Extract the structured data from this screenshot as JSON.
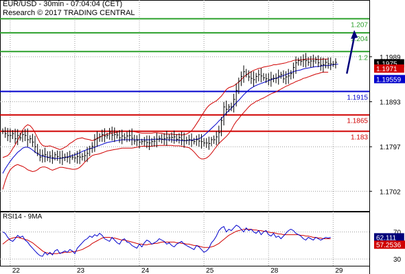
{
  "header": {
    "title": "EUR/USD - 30min - 07:04:04 (CET)",
    "subtitle": "Research © 2017 TRADING CENTRAL"
  },
  "chart_data": [
    {
      "type": "line",
      "name": "price",
      "ylim": [
        1.166,
        1.211
      ],
      "y_ticks": [
        {
          "value": 1.1989,
          "label": "1.1989"
        },
        {
          "value": 1.1893,
          "label": "1.1893"
        },
        {
          "value": 1.1797,
          "label": "1.1797"
        },
        {
          "value": 1.1702,
          "label": "1.1702"
        }
      ],
      "x_ticks": [
        {
          "x": 3,
          "label": "22"
        },
        {
          "x": 29,
          "label": "23"
        },
        {
          "x": 55,
          "label": "24"
        },
        {
          "x": 81,
          "label": "25"
        },
        {
          "x": 107,
          "label": "28"
        },
        {
          "x": 133,
          "label": "29"
        }
      ],
      "levels": [
        {
          "value": 1.207,
          "label": "1.207",
          "color": "#2ca02c"
        },
        {
          "value": 1.204,
          "label": "1.204",
          "color": "#2ca02c"
        },
        {
          "value": 1.2,
          "label": "1.2",
          "color": "#2ca02c"
        },
        {
          "value": 1.1915,
          "label": "1.1915",
          "color": "#0000cc"
        },
        {
          "value": 1.1865,
          "label": "1.1865",
          "color": "#d00000"
        },
        {
          "value": 1.183,
          "label": "1.183",
          "color": "#d00000"
        }
      ],
      "price_tags": [
        {
          "value": 1.1975,
          "label": "1.1975",
          "bg": "#000000",
          "fg": "#ffffff"
        },
        {
          "value": 1.1971,
          "label": "1.1971",
          "bg": "#d00000",
          "fg": "#ffffff"
        },
        {
          "value": 1.19559,
          "label": "1.19559",
          "bg": "#0000cc",
          "fg": "#ffffff"
        }
      ],
      "close": [
        1.183,
        1.1825,
        1.1821,
        1.1821,
        1.1825,
        1.1814,
        1.1821,
        1.1816,
        1.1823,
        1.1821,
        1.1812,
        1.1814,
        1.1807,
        1.1797,
        1.1783,
        1.1775,
        1.1779,
        1.178,
        1.1774,
        1.1777,
        1.1774,
        1.178,
        1.1776,
        1.1773,
        1.1774,
        1.1775,
        1.1774,
        1.1775,
        1.1775,
        1.1773,
        1.1776,
        1.1775,
        1.1776,
        1.1778,
        1.1783,
        1.1793,
        1.1798,
        1.1812,
        1.1815,
        1.1818,
        1.1823,
        1.182,
        1.1821,
        1.1828,
        1.1822,
        1.1823,
        1.1822,
        1.1816,
        1.182,
        1.1816,
        1.182,
        1.1821,
        1.1815,
        1.1809,
        1.1811,
        1.1807,
        1.1808,
        1.1809,
        1.1806,
        1.1805,
        1.1808,
        1.1809,
        1.1813,
        1.1815,
        1.1813,
        1.1814,
        1.1816,
        1.1816,
        1.1817,
        1.1818,
        1.1813,
        1.1817,
        1.1812,
        1.181,
        1.1811,
        1.1812,
        1.181,
        1.1808,
        1.1812,
        1.1809,
        1.1808,
        1.1805,
        1.1805,
        1.1804,
        1.1812,
        1.1812,
        1.1818,
        1.1827,
        1.1853,
        1.1882,
        1.1877,
        1.1882,
        1.1882,
        1.1898,
        1.1917,
        1.1937,
        1.1947,
        1.1957,
        1.1951,
        1.1946,
        1.1943,
        1.194,
        1.1947,
        1.1951,
        1.1948,
        1.1944,
        1.1942,
        1.194,
        1.1942,
        1.1943,
        1.1943,
        1.1948,
        1.1951,
        1.1942,
        1.1946,
        1.1948,
        1.1953,
        1.1966,
        1.1976,
        1.1981,
        1.1979,
        1.1982,
        1.1981,
        1.1977,
        1.198,
        1.198,
        1.1983,
        1.1976,
        1.1971,
        1.1972,
        1.1977,
        1.1974,
        1.1974,
        1.1973,
        1.1977
      ],
      "ma": [
        1.174,
        1.175,
        1.1758,
        1.1766,
        1.1773,
        1.1779,
        1.1785,
        1.1789,
        1.1794,
        1.1796,
        1.1796,
        1.1794,
        1.179,
        1.1786,
        1.1782,
        1.1779,
        1.1777,
        1.1776,
        1.1775,
        1.1774,
        1.1772,
        1.1772,
        1.1772,
        1.1772,
        1.1773,
        1.1774,
        1.1775,
        1.1777,
        1.1778,
        1.178,
        1.1782,
        1.1784,
        1.1787,
        1.1789,
        1.1791,
        1.1793,
        1.1794,
        1.1796,
        1.1798,
        1.18,
        1.1802,
        1.1804,
        1.1806,
        1.1807,
        1.1808,
        1.1809,
        1.181,
        1.1811,
        1.1812,
        1.1812,
        1.1812,
        1.1812,
        1.1812,
        1.1812,
        1.1812,
        1.1812,
        1.1812,
        1.1812,
        1.1812,
        1.1812,
        1.1812,
        1.1813,
        1.1813,
        1.1813,
        1.1813,
        1.1812,
        1.1812,
        1.1812,
        1.1812,
        1.1811,
        1.1811,
        1.1811,
        1.181,
        1.181,
        1.181,
        1.1811,
        1.1811,
        1.1812,
        1.1813,
        1.1814,
        1.1817,
        1.1821,
        1.1826,
        1.1831,
        1.1836,
        1.1841,
        1.1846,
        1.1852,
        1.1857,
        1.1863,
        1.1869,
        1.1874,
        1.1879,
        1.1885,
        1.1891,
        1.1896,
        1.1902,
        1.1908,
        1.1913,
        1.1918,
        1.1922,
        1.1925,
        1.1928,
        1.193,
        1.1932,
        1.1934,
        1.1936,
        1.1938,
        1.194,
        1.1942,
        1.1943,
        1.1945,
        1.1947,
        1.1949,
        1.1951,
        1.1953,
        1.1955,
        1.1957,
        1.1959,
        1.196,
        1.1961,
        1.1963,
        1.1964,
        1.1965,
        1.1966,
        1.1967,
        1.1968,
        1.1968,
        1.1969,
        1.197,
        1.197,
        1.197,
        1.1971,
        1.1972,
        1.1973,
        1.1973
      ],
      "band_width": [
        0.0034,
        0.0026,
        0.002,
        0.0018,
        0.002,
        0.0022,
        0.0026,
        0.0032,
        0.0039,
        0.0044,
        0.0048,
        0.0048,
        0.0046,
        0.0041,
        0.0034,
        0.0027,
        0.0023,
        0.0022,
        0.0023,
        0.0025,
        0.0025,
        0.0023,
        0.0021,
        0.0019,
        0.002,
        0.0022,
        0.0024,
        0.0027,
        0.0029,
        0.0031,
        0.0032,
        0.0031,
        0.0029,
        0.0025,
        0.0022,
        0.0019,
        0.0016,
        0.0016,
        0.0017,
        0.0018,
        0.0018,
        0.0018,
        0.0018,
        0.0018,
        0.0018,
        0.0018,
        0.0018,
        0.0018,
        0.0018,
        0.0018,
        0.0018,
        0.0018,
        0.0018,
        0.0017,
        0.0016,
        0.0015,
        0.0014,
        0.0014,
        0.0014,
        0.0014,
        0.0014,
        0.0014,
        0.0014,
        0.0013,
        0.0013,
        0.0012,
        0.0012,
        0.0012,
        0.0012,
        0.0012,
        0.0012,
        0.0012,
        0.0012,
        0.0013,
        0.0014,
        0.0016,
        0.002,
        0.0026,
        0.0033,
        0.004,
        0.0046,
        0.005,
        0.0053,
        0.0054,
        0.0053,
        0.0051,
        0.0049,
        0.0048,
        0.0048,
        0.0049,
        0.005,
        0.0049,
        0.0046,
        0.0042,
        0.004,
        0.0039,
        0.0038,
        0.0038,
        0.0037,
        0.0036,
        0.0035,
        0.0035,
        0.0034,
        0.0034,
        0.0033,
        0.0033,
        0.0032,
        0.0031,
        0.003,
        0.003,
        0.0029,
        0.0028,
        0.0027,
        0.0026,
        0.0025,
        0.0025,
        0.0024,
        0.0024,
        0.0023,
        0.0022,
        0.0021,
        0.002,
        0.002,
        0.0019,
        0.0018,
        0.0017,
        0.0016,
        0.0015,
        0.0014,
        0.0014,
        0.0014,
        0.0014
      ],
      "projection": {
        "from": {
          "x": 138.5,
          "y": 1.1953
        },
        "to": {
          "x": 141.5,
          "y": 1.204
        }
      }
    },
    {
      "type": "line",
      "name": "RSI14 - 9MA",
      "label": "RSI14 - 9MA",
      "ylim": [
        20,
        100
      ],
      "y_ticks": [
        {
          "value": 70,
          "label": "70"
        },
        {
          "value": 30,
          "label": "30"
        }
      ],
      "rsi_value": {
        "value": 62.111,
        "label": "62.111"
      },
      "ma_value": {
        "value": 57.2536,
        "label": "57.2536"
      },
      "rsi": [
        70,
        68,
        62,
        58,
        56,
        60,
        65,
        62,
        64,
        58,
        55,
        50,
        46,
        42,
        38,
        35,
        34,
        40,
        36,
        40,
        36,
        42,
        44,
        38,
        40,
        42,
        40,
        44,
        42,
        38,
        46,
        50,
        54,
        58,
        60,
        64,
        62,
        66,
        64,
        68,
        65,
        60,
        58,
        56,
        62,
        58,
        54,
        52,
        58,
        60,
        55,
        54,
        50,
        48,
        46,
        52,
        48,
        54,
        58,
        56,
        52,
        54,
        56,
        60,
        58,
        56,
        52,
        54,
        50,
        48,
        52,
        54,
        56,
        52,
        50,
        48,
        46,
        44,
        50,
        48,
        44,
        40,
        42,
        46,
        54,
        58,
        64,
        72,
        76,
        78,
        70,
        74,
        72,
        76,
        80,
        78,
        74,
        70,
        76,
        72,
        74,
        70,
        68,
        72,
        66,
        70,
        72,
        66,
        64,
        68,
        62,
        64,
        60,
        64,
        68,
        72,
        74,
        72,
        68,
        66,
        64,
        60,
        58,
        62,
        60,
        58,
        62,
        60,
        58,
        60,
        62,
        61,
        62
      ],
      "rsi_ma": [
        52,
        55,
        58,
        60,
        61,
        62,
        62,
        61,
        60,
        59,
        58,
        56,
        54,
        51,
        48,
        45,
        42,
        40,
        39,
        38,
        38,
        38,
        38,
        39,
        39,
        40,
        40,
        40,
        41,
        41,
        42,
        43,
        44,
        46,
        48,
        50,
        53,
        55,
        57,
        59,
        61,
        62,
        62,
        62,
        61,
        61,
        60,
        59,
        58,
        58,
        57,
        56,
        55,
        54,
        53,
        52,
        52,
        51,
        51,
        52,
        52,
        53,
        53,
        54,
        55,
        55,
        55,
        55,
        55,
        55,
        54,
        54,
        53,
        53,
        52,
        52,
        51,
        50,
        50,
        49,
        48,
        47,
        47,
        47,
        48,
        49,
        51,
        53,
        56,
        59,
        62,
        65,
        67,
        69,
        71,
        72,
        73,
        74,
        74,
        74,
        74,
        73,
        73,
        72,
        72,
        71,
        71,
        70,
        69,
        69,
        68,
        67,
        67,
        66,
        66,
        66,
        66,
        66,
        66,
        66,
        65,
        65,
        64,
        64,
        63,
        62,
        62,
        61,
        61,
        60,
        60,
        60,
        60
      ]
    }
  ]
}
